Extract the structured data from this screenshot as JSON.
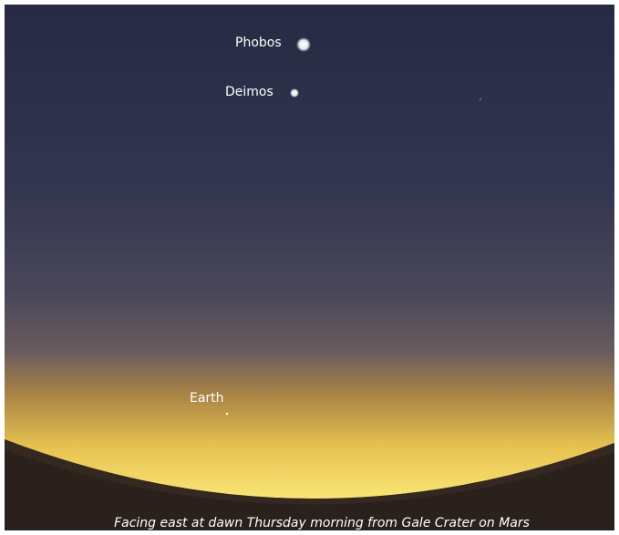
{
  "objects": [
    {
      "label": "Phobos"
    },
    {
      "label": "Deimos"
    },
    {
      "label": "Earth"
    }
  ],
  "caption": "Facing east at dawn Thursday morning from Gale Crater on Mars"
}
